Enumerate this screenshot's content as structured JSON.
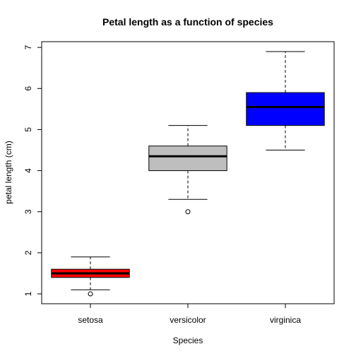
{
  "chart_data": {
    "type": "boxplot",
    "title": "Petal length as a function of species",
    "xlabel": "Species",
    "ylabel": "petal length (cm)",
    "ylim": [
      0.76,
      7.14
    ],
    "yticks": [
      1,
      2,
      3,
      4,
      5,
      6,
      7
    ],
    "ytick_labels": [
      "1",
      "2",
      "3",
      "4",
      "5",
      "6",
      "7"
    ],
    "grid": false,
    "categories": [
      "setosa",
      "versicolor",
      "virginica"
    ],
    "boxes": [
      {
        "category": "setosa",
        "whisker_low": 1.1,
        "q1": 1.4,
        "median": 1.5,
        "q3": 1.6,
        "whisker_high": 1.9,
        "outliers": [
          1.0
        ],
        "color": "#ff0000"
      },
      {
        "category": "versicolor",
        "whisker_low": 3.3,
        "q1": 4.0,
        "median": 4.35,
        "q3": 4.6,
        "whisker_high": 5.1,
        "outliers": [
          3.0
        ],
        "color": "#bebebe"
      },
      {
        "category": "virginica",
        "whisker_low": 4.5,
        "q1": 5.1,
        "median": 5.55,
        "q3": 5.9,
        "whisker_high": 6.9,
        "outliers": [],
        "color": "#0000ff"
      }
    ]
  }
}
